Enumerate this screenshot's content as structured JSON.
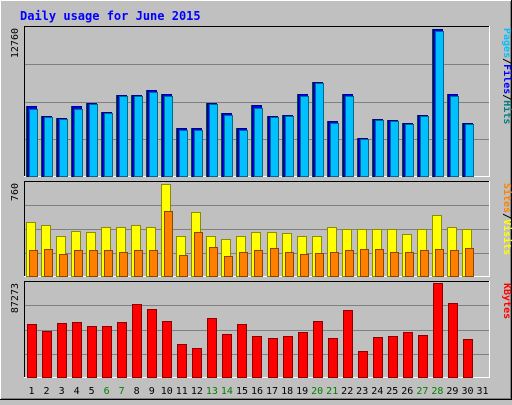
{
  "chart_data": {
    "type": "bar",
    "title": "Daily usage for June 2015",
    "x": [
      "1",
      "2",
      "3",
      "4",
      "5",
      "6",
      "7",
      "8",
      "9",
      "10",
      "11",
      "12",
      "13",
      "14",
      "15",
      "16",
      "17",
      "18",
      "19",
      "20",
      "21",
      "22",
      "23",
      "24",
      "25",
      "26",
      "27",
      "28",
      "29",
      "30",
      "31"
    ],
    "weekend_days": [
      "6",
      "7",
      "13",
      "14",
      "20",
      "21",
      "27",
      "28"
    ],
    "panels": [
      {
        "id": "pages_files_hits",
        "ymax_label": "12760",
        "ylim": [
          0,
          12760
        ],
        "legend": [
          {
            "text": "Pages",
            "color": "#00c0ff"
          },
          {
            "text": "/",
            "color": "#000000"
          },
          {
            "text": "Files",
            "color": "#0000ff"
          },
          {
            "text": "/",
            "color": "#000000"
          },
          {
            "text": "Hits",
            "color": "#008080"
          }
        ],
        "series": [
          {
            "name": "Hits",
            "color": "#008080",
            "values": [
              6000,
              5200,
              5000,
              6000,
              6300,
              5500,
              7000,
              7000,
              7400,
              7100,
              4100,
              4100,
              6300,
              5400,
              4100,
              6100,
              5200,
              5300,
              7100,
              8100,
              4700,
              7100,
              3300,
              4900,
              4800,
              4600,
              5300,
              12700,
              7100,
              4600,
              0
            ]
          },
          {
            "name": "Files",
            "color": "#0000ff",
            "values": [
              6000,
              5200,
              5000,
              6000,
              6300,
              5500,
              7000,
              7000,
              7400,
              7100,
              4100,
              4100,
              6300,
              5400,
              4100,
              6100,
              5200,
              5300,
              7100,
              8100,
              4700,
              7100,
              3300,
              4900,
              4800,
              4600,
              5300,
              12700,
              7100,
              4600,
              0
            ]
          },
          {
            "name": "Pages",
            "color": "#00c0ff",
            "values": [
              5800,
              5100,
              4900,
              5800,
              6200,
              5400,
              6900,
              6900,
              7200,
              6900,
              4000,
              4000,
              6200,
              5300,
              4000,
              5900,
              5100,
              5200,
              6900,
              8000,
              4600,
              6900,
              3200,
              4800,
              4700,
              4500,
              5200,
              12500,
              6900,
              4500,
              0
            ]
          }
        ]
      },
      {
        "id": "visits_sites",
        "ymax_label": "760",
        "ylim": [
          0,
          760
        ],
        "legend": [
          {
            "text": "Sites",
            "color": "#ff8000"
          },
          {
            "text": "/",
            "color": "#000000"
          },
          {
            "text": "Visits",
            "color": "#ffff00"
          }
        ],
        "series": [
          {
            "name": "Visits",
            "color": "#ffff00",
            "values": [
              440,
              420,
              330,
              370,
              360,
              400,
              400,
              420,
              400,
              750,
              330,
              520,
              330,
              300,
              330,
              360,
              360,
              350,
              330,
              330,
              400,
              380,
              380,
              380,
              380,
              340,
              380,
              500,
              400,
              380,
              0
            ]
          },
          {
            "name": "Sites",
            "color": "#ff8000",
            "values": [
              210,
              220,
              180,
              210,
              210,
              210,
              200,
              210,
              210,
              530,
              170,
              360,
              240,
              160,
              200,
              210,
              230,
              200,
              180,
              190,
              200,
              210,
              220,
              220,
              200,
              200,
              210,
              220,
              210,
              230,
              0
            ]
          }
        ]
      },
      {
        "id": "kbytes",
        "ymax_label": "87273",
        "ylim": [
          0,
          87273
        ],
        "legend": [
          {
            "text": "KBytes",
            "color": "#ff0000"
          }
        ],
        "series": [
          {
            "name": "KBytes",
            "color": "#ff0000",
            "values": [
              49000,
              43000,
              50000,
              51000,
              47000,
              47000,
              51000,
              68000,
              63000,
              52000,
              31000,
              27000,
              55000,
              40000,
              49000,
              38000,
              36000,
              38000,
              42000,
              52000,
              36000,
              62000,
              24000,
              37000,
              38000,
              42000,
              39000,
              87273,
              69000,
              35000,
              0
            ]
          }
        ]
      }
    ]
  }
}
